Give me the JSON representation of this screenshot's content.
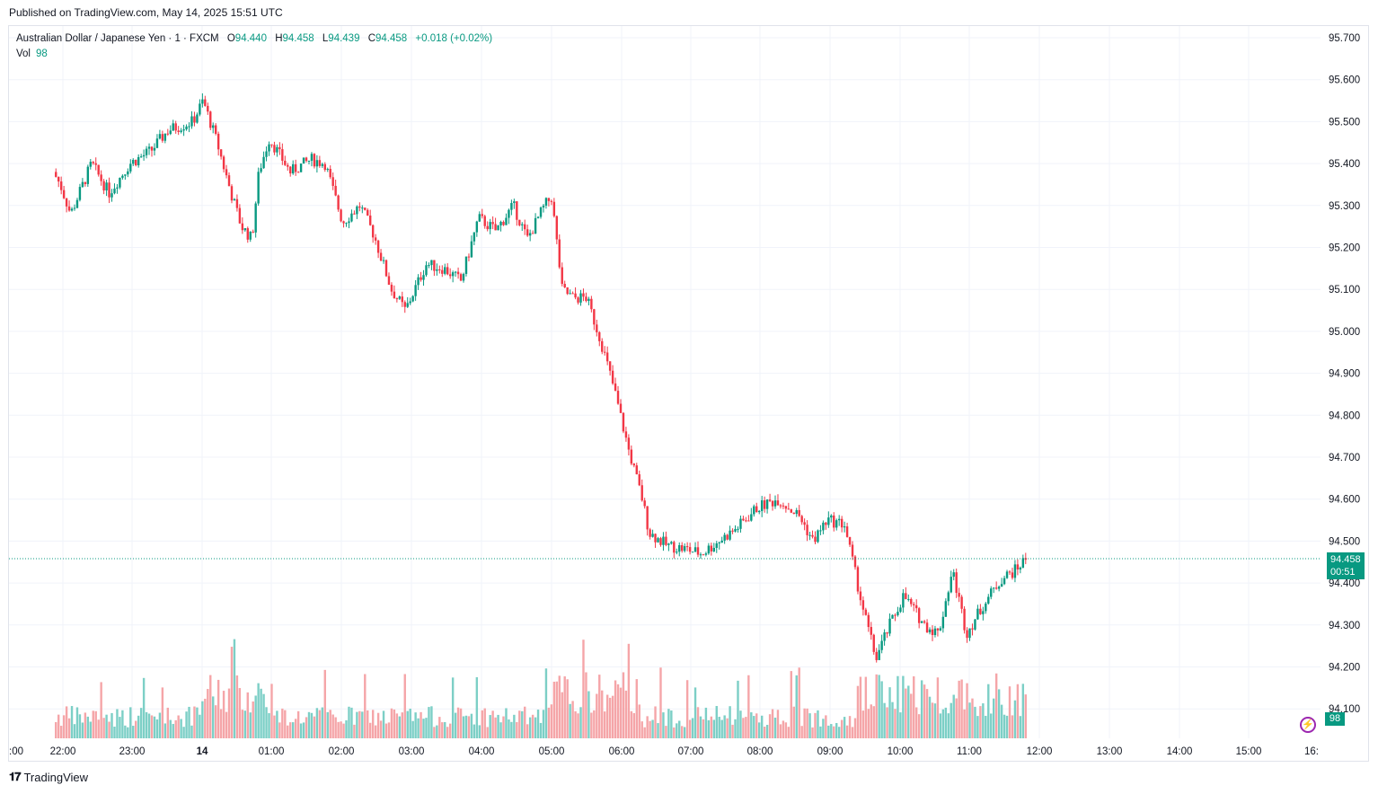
{
  "header": {
    "published": "Published on TradingView.com, May 14, 2025 15:51 UTC"
  },
  "legend": {
    "symbol": "Australian Dollar / Japanese Yen · 1 · FXCM",
    "open_label": "O",
    "open": "94.440",
    "high_label": "H",
    "high": "94.458",
    "low_label": "L",
    "low": "94.439",
    "close_label": "C",
    "close": "94.458",
    "change": "+0.018 (+0.02%)",
    "vol_label": "Vol",
    "vol": "98"
  },
  "price_tag": {
    "price": "94.458",
    "countdown": "00:51"
  },
  "volume_tag": {
    "value": "98"
  },
  "footer": {
    "brand": "TradingView"
  },
  "colors": {
    "up": "#089981",
    "down": "#f23645",
    "vol_up": "#7ccfc6",
    "vol_down": "#f5a5a8",
    "grid": "#f0f3fa"
  },
  "chart_data": {
    "type": "candlestick",
    "y_axis": {
      "min": 94.05,
      "max": 95.7,
      "ticks": [
        "95.700",
        "95.600",
        "95.500",
        "95.400",
        "95.300",
        "95.200",
        "95.100",
        "95.000",
        "94.900",
        "94.800",
        "94.700",
        "94.600",
        "94.500",
        "94.400",
        "94.300",
        "94.200",
        "94.100"
      ]
    },
    "x_axis": {
      "ticks": [
        ":00",
        "22:00",
        "23:00",
        "14",
        "01:00",
        "02:00",
        "03:00",
        "04:00",
        "05:00",
        "06:00",
        "07:00",
        "08:00",
        "09:00",
        "10:00",
        "11:00",
        "12:00",
        "13:00",
        "14:00",
        "15:00",
        "16:"
      ]
    },
    "last_price": 94.458,
    "price_path": [
      {
        "t": -0.1,
        "p": 95.38
      },
      {
        "t": 0.0,
        "p": 95.35
      },
      {
        "t": 0.15,
        "p": 95.28
      },
      {
        "t": 0.45,
        "p": 95.4
      },
      {
        "t": 0.7,
        "p": 95.33
      },
      {
        "t": 1.0,
        "p": 95.4
      },
      {
        "t": 1.3,
        "p": 95.43
      },
      {
        "t": 1.55,
        "p": 95.48
      },
      {
        "t": 1.9,
        "p": 95.5
      },
      {
        "t": 2.05,
        "p": 95.55
      },
      {
        "t": 2.25,
        "p": 95.45
      },
      {
        "t": 2.45,
        "p": 95.33
      },
      {
        "t": 2.6,
        "p": 95.25
      },
      {
        "t": 2.75,
        "p": 95.22
      },
      {
        "t": 2.85,
        "p": 95.38
      },
      {
        "t": 3.0,
        "p": 95.46
      },
      {
        "t": 3.3,
        "p": 95.38
      },
      {
        "t": 3.6,
        "p": 95.41
      },
      {
        "t": 3.8,
        "p": 95.4
      },
      {
        "t": 4.05,
        "p": 95.26
      },
      {
        "t": 4.3,
        "p": 95.3
      },
      {
        "t": 4.5,
        "p": 95.23
      },
      {
        "t": 4.75,
        "p": 95.1
      },
      {
        "t": 4.95,
        "p": 95.05
      },
      {
        "t": 5.25,
        "p": 95.16
      },
      {
        "t": 5.5,
        "p": 95.15
      },
      {
        "t": 5.75,
        "p": 95.12
      },
      {
        "t": 6.0,
        "p": 95.27
      },
      {
        "t": 6.25,
        "p": 95.24
      },
      {
        "t": 6.5,
        "p": 95.3
      },
      {
        "t": 6.7,
        "p": 95.22
      },
      {
        "t": 6.95,
        "p": 95.3
      },
      {
        "t": 7.05,
        "p": 95.32
      },
      {
        "t": 7.2,
        "p": 95.1
      },
      {
        "t": 7.35,
        "p": 95.08
      },
      {
        "t": 7.55,
        "p": 95.08
      },
      {
        "t": 7.75,
        "p": 94.98
      },
      {
        "t": 7.95,
        "p": 94.86
      },
      {
        "t": 8.15,
        "p": 94.72
      },
      {
        "t": 8.35,
        "p": 94.6
      },
      {
        "t": 8.45,
        "p": 94.52
      },
      {
        "t": 8.7,
        "p": 94.49
      },
      {
        "t": 9.0,
        "p": 94.48
      },
      {
        "t": 9.2,
        "p": 94.47
      },
      {
        "t": 9.45,
        "p": 94.5
      },
      {
        "t": 9.7,
        "p": 94.53
      },
      {
        "t": 10.0,
        "p": 94.58
      },
      {
        "t": 10.3,
        "p": 94.6
      },
      {
        "t": 10.6,
        "p": 94.56
      },
      {
        "t": 10.8,
        "p": 94.5
      },
      {
        "t": 11.0,
        "p": 94.55
      },
      {
        "t": 11.25,
        "p": 94.54
      },
      {
        "t": 11.5,
        "p": 94.35
      },
      {
        "t": 11.7,
        "p": 94.22
      },
      {
        "t": 11.9,
        "p": 94.3
      },
      {
        "t": 12.1,
        "p": 94.37
      },
      {
        "t": 12.4,
        "p": 94.3
      },
      {
        "t": 12.6,
        "p": 94.28
      },
      {
        "t": 12.8,
        "p": 94.43
      },
      {
        "t": 13.0,
        "p": 94.28
      },
      {
        "t": 13.25,
        "p": 94.35
      },
      {
        "t": 13.5,
        "p": 94.41
      },
      {
        "t": 13.7,
        "p": 94.43
      },
      {
        "t": 13.85,
        "p": 94.458
      }
    ],
    "volume_range": [
      0,
      98
    ]
  }
}
